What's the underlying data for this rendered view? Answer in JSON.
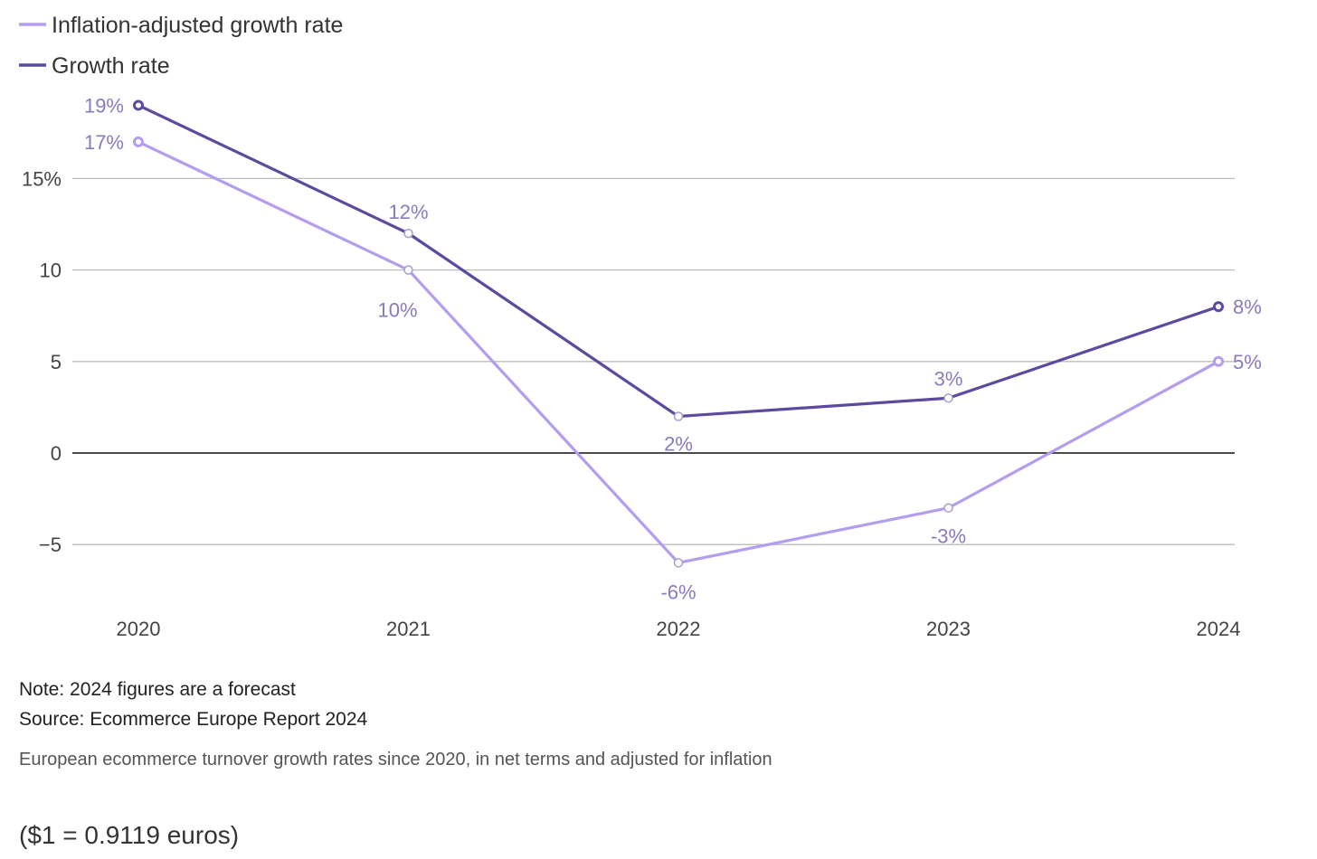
{
  "chart_data": {
    "type": "line",
    "categories": [
      "2020",
      "2021",
      "2022",
      "2023",
      "2024"
    ],
    "series": [
      {
        "name": "Inflation-adjusted growth rate",
        "color": "#b49cf0",
        "values": [
          17,
          10,
          -6,
          -3,
          5
        ],
        "labels": [
          "17%",
          "10%",
          "-6%",
          "-3%",
          "5%"
        ]
      },
      {
        "name": "Growth rate",
        "color": "#5d4a9e",
        "values": [
          19,
          12,
          2,
          3,
          8
        ],
        "labels": [
          "19%",
          "12%",
          "2%",
          "3%",
          "8%"
        ]
      }
    ],
    "yticks": [
      -5,
      0,
      5,
      10,
      15
    ],
    "ytick_labels": [
      "−5",
      "0",
      "5",
      "10",
      "15%"
    ],
    "ylim": [
      -8.5,
      20
    ],
    "grid": true,
    "legend": "top-left",
    "xlabel": "",
    "ylabel": ""
  },
  "notes": {
    "note": "Note: 2024 figures are a forecast",
    "source": "Source: Ecommerce Europe Report 2024",
    "caption": "European ecommerce turnover growth rates since 2020, in net terms and adjusted for inflation",
    "exchange_rate": "($1 = 0.9119 euros)"
  }
}
